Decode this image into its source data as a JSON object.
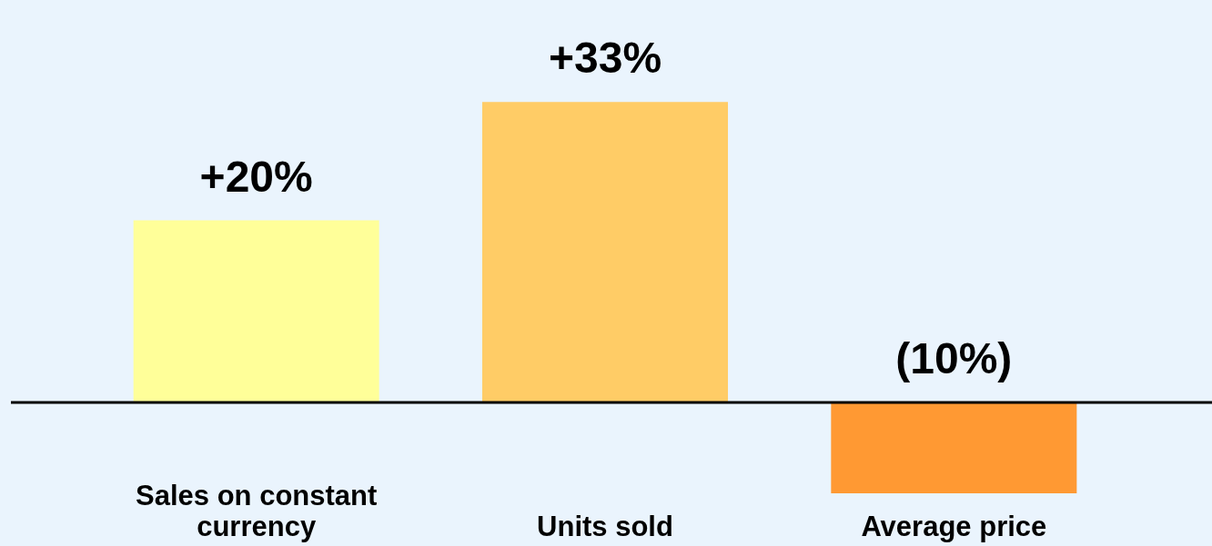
{
  "chart_data": {
    "type": "bar",
    "categories": [
      "Sales on constant currency",
      "Units sold",
      "Average price"
    ],
    "values": [
      20,
      33,
      -10
    ],
    "colors": [
      "#ffff99",
      "#ffcc66",
      "#ff9933"
    ],
    "value_labels": [
      "+20%",
      "+33%",
      "(10%)"
    ]
  }
}
